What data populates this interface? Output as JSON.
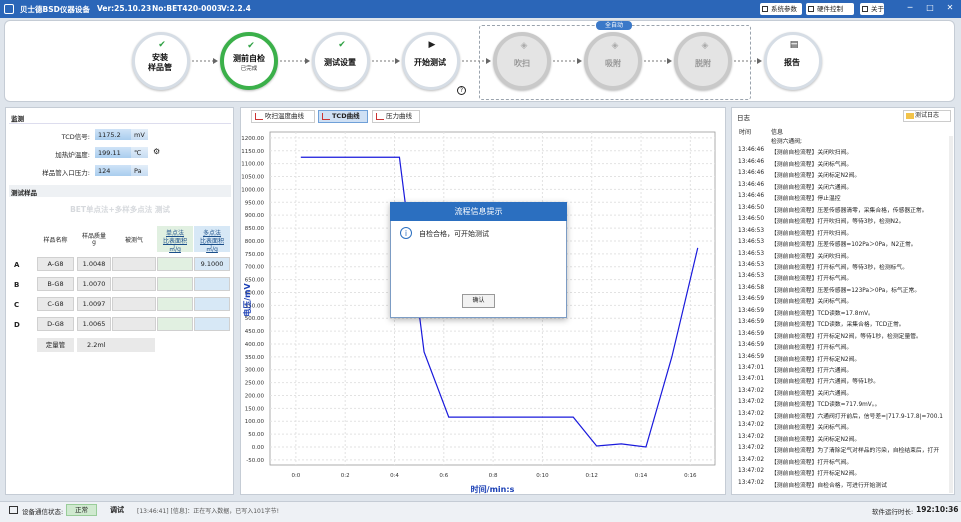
{
  "titlebar": {
    "title": "贝士德BSD仪器设备",
    "version": "Ver:25.10.23",
    "serial": "No:BET420-0003",
    "software": "V:2.2.4",
    "buttons": [
      "系统参数",
      "硬件控制",
      "关于"
    ]
  },
  "flow": {
    "group_label": "全自动",
    "steps": [
      {
        "lines": [
          "安装",
          "样品管"
        ],
        "icon": "check",
        "state": "done"
      },
      {
        "lines": [
          "测前自检"
        ],
        "note": "已完成",
        "icon": "check",
        "state": "active"
      },
      {
        "lines": [
          "测试设置"
        ],
        "icon": "check",
        "state": "done"
      },
      {
        "lines": [
          "开始测试"
        ],
        "icon": "play",
        "state": "done"
      },
      {
        "lines": [
          "吹扫"
        ],
        "icon": "stack",
        "state": "disabled"
      },
      {
        "lines": [
          "吸附"
        ],
        "icon": "stack",
        "state": "disabled"
      },
      {
        "lines": [
          "脱附"
        ],
        "icon": "stack",
        "state": "disabled"
      },
      {
        "lines": [
          "报告"
        ],
        "icon": "report",
        "state": "done"
      }
    ]
  },
  "monitor": {
    "title": "监测",
    "rows": [
      {
        "label": "TCD信号:",
        "value": "1175.2",
        "unit": "mV"
      },
      {
        "label": "加热炉温度:",
        "value": "199.11",
        "unit": "℃"
      },
      {
        "label": "样品管入口压力:",
        "value": "124",
        "unit": "Pa"
      }
    ]
  },
  "samples": {
    "title": "测试样品",
    "method": "BET单点法+多样多点法 测试",
    "headers": [
      [
        "样品名称"
      ],
      [
        "样品质量",
        "g"
      ],
      [
        "被测气"
      ],
      [
        "单点法",
        "比表面积",
        "㎡/g"
      ],
      [
        "多点法",
        "比表面积",
        "㎡/g"
      ]
    ],
    "rows": [
      {
        "id": "A",
        "name": "A-G8",
        "mass": "1.0048",
        "multi": "9.1000"
      },
      {
        "id": "B",
        "name": "B-G8",
        "mass": "1.0070"
      },
      {
        "id": "C",
        "name": "C-G8",
        "mass": "1.0097"
      },
      {
        "id": "D",
        "name": "D-G8",
        "mass": "1.0065"
      }
    ],
    "quant": {
      "label": "定量管",
      "value": "2.2ml"
    }
  },
  "tabs": {
    "items": [
      "吹扫温度曲线",
      "TCD曲线",
      "压力曲线"
    ],
    "active": 1
  },
  "chart_data": {
    "type": "line",
    "y_label": "电压/mV",
    "x_label": "时间/min:s",
    "x": [
      0.2,
      4.2,
      5.2,
      6.2,
      11.25,
      12.2,
      13.2,
      14.2,
      15.25,
      16.3
    ],
    "series": [
      {
        "color": "#1a1adc",
        "values": [
          1125,
          1125,
          369,
          116,
          116,
          4,
          12,
          0,
          350,
          773
        ]
      }
    ],
    "xlim": [
      -1.05,
      17
    ],
    "ylim": [
      -70,
      1223
    ],
    "xticks": [
      {
        "value": 0,
        "label": "0:0"
      },
      {
        "value": 2,
        "label": "0:2"
      },
      {
        "value": 4,
        "label": "0:4"
      },
      {
        "value": 6,
        "label": "0:6"
      },
      {
        "value": 8,
        "label": "0:8"
      },
      {
        "value": 10,
        "label": "0:10"
      },
      {
        "value": 12,
        "label": "0:12"
      },
      {
        "value": 14,
        "label": "0:14"
      },
      {
        "value": 16,
        "label": "0:16"
      }
    ],
    "yticks": [
      {
        "value": -50,
        "label": "-50.00"
      },
      {
        "value": 0,
        "label": "0.00"
      },
      {
        "value": 50,
        "label": "50.00"
      },
      {
        "value": 100,
        "label": "100.00"
      },
      {
        "value": 150,
        "label": "150.00"
      },
      {
        "value": 200,
        "label": "200.00"
      },
      {
        "value": 250,
        "label": "250.00"
      },
      {
        "value": 300,
        "label": "300.00"
      },
      {
        "value": 350,
        "label": "350.00"
      },
      {
        "value": 400,
        "label": "400.00"
      },
      {
        "value": 450,
        "label": "450.00"
      },
      {
        "value": 500,
        "label": "500.00"
      },
      {
        "value": 550,
        "label": "550.00"
      },
      {
        "value": 600,
        "label": "600.00"
      },
      {
        "value": 650,
        "label": "650.00"
      },
      {
        "value": 700,
        "label": "700.00"
      },
      {
        "value": 750,
        "label": "750.00"
      },
      {
        "value": 800,
        "label": "800.00"
      },
      {
        "value": 850,
        "label": "850.00"
      },
      {
        "value": 900,
        "label": "900.00"
      },
      {
        "value": 950,
        "label": "950.00"
      },
      {
        "value": 1000,
        "label": "1000.00"
      },
      {
        "value": 1050,
        "label": "1050.00"
      },
      {
        "value": 1100,
        "label": "1100.00"
      },
      {
        "value": 1150,
        "label": "1150.00"
      },
      {
        "value": 1200,
        "label": "1200.00"
      }
    ],
    "grid": true
  },
  "dialog": {
    "title": "流程信息提示",
    "message": "自检合格，可开始测试",
    "button": "确认"
  },
  "log": {
    "title": "日志",
    "button": "测试日志",
    "headers": [
      "时间",
      "信息"
    ],
    "rows": [
      {
        "msg": "检测六通阀;"
      },
      {
        "time": "13:46:46",
        "msg": "【测前自检流程】关闭吹扫阀。"
      },
      {
        "time": "13:46:46",
        "msg": "【测前自检流程】关闭标气阀。"
      },
      {
        "time": "13:46:46",
        "msg": "【测前自检流程】关闭标定N2阀。"
      },
      {
        "time": "13:46:46",
        "msg": "【测前自检流程】关闭六通阀。"
      },
      {
        "time": "13:46:46",
        "msg": "【测前自检流程】停止温控"
      },
      {
        "time": "13:46:50",
        "msg": "【测前自检流程】压差传感器清零，采集合格，传感器正常。"
      },
      {
        "time": "13:46:50",
        "msg": "【测前自检流程】打开吹扫阀，等待3秒，检测N2。"
      },
      {
        "time": "13:46:53",
        "msg": "【测前自检流程】打开吹扫阀。"
      },
      {
        "time": "13:46:53",
        "msg": "【测前自检流程】压差传感器=102Pa＞0Pa，N2正常。"
      },
      {
        "time": "13:46:53",
        "msg": "【测前自检流程】关闭吹扫阀。"
      },
      {
        "time": "13:46:53",
        "msg": "【测前自检流程】打开标气阀，等待3秒，检测标气。"
      },
      {
        "time": "13:46:53",
        "msg": "【测前自检流程】打开标气阀。"
      },
      {
        "time": "13:46:58",
        "msg": "【测前自检流程】压差传感器=123Pa＞0Pa，标气正常。"
      },
      {
        "time": "13:46:59",
        "msg": "【测前自检流程】关闭标气阀。"
      },
      {
        "time": "13:46:59",
        "msg": "【测前自检流程】TCD读数=17.8mV。"
      },
      {
        "time": "13:46:59",
        "msg": "【测前自检流程】TCD读数，采集合格，TCD正常。"
      },
      {
        "time": "13:46:59",
        "msg": "【测前自检流程】打开标定N2阀，等待1秒，检测定量管。"
      },
      {
        "time": "13:46:59",
        "msg": "【测前自检流程】打开标气阀。"
      },
      {
        "time": "13:46:59",
        "msg": "【测前自检流程】打开标定N2阀。"
      },
      {
        "time": "13:47:01",
        "msg": "【测前自检流程】打开六通阀。"
      },
      {
        "time": "13:47:01",
        "msg": "【测前自检流程】打开六通阀，等待1秒。"
      },
      {
        "time": "13:47:02",
        "msg": "【测前自检流程】关闭六通阀。"
      },
      {
        "time": "13:47:02",
        "msg": "【测前自检流程】TCD读数=717.9mV。。"
      },
      {
        "time": "13:47:02",
        "msg": "【测前自检流程】六通阀打开前后，信号差=|717.9-17.8|=700.1"
      },
      {
        "time": "13:47:02",
        "msg": "【测前自检流程】关闭标气阀。"
      },
      {
        "time": "13:47:02",
        "msg": "【测前自检流程】关闭标定N2阀。"
      },
      {
        "time": "13:47:02",
        "msg": "【测前自检流程】为了清除定气对样品的污染，自检结束后，打开"
      },
      {
        "time": "13:47:02",
        "msg": "【测前自检流程】打开标气阀。"
      },
      {
        "time": "13:47:02",
        "msg": "【测前自检流程】打开标定N2阀。"
      },
      {
        "time": "13:47:02",
        "msg": "【测前自检流程】自检合格，可进行开始测试"
      }
    ]
  },
  "status": {
    "comm_label": "设备通信状态:",
    "comm_value": "正常",
    "mode": "调试",
    "message": "[13:46:41] [信息]：正在写入数据，已写入101字节!",
    "runtime_label": "软件运行时长:",
    "runtime": "192:10:36"
  }
}
